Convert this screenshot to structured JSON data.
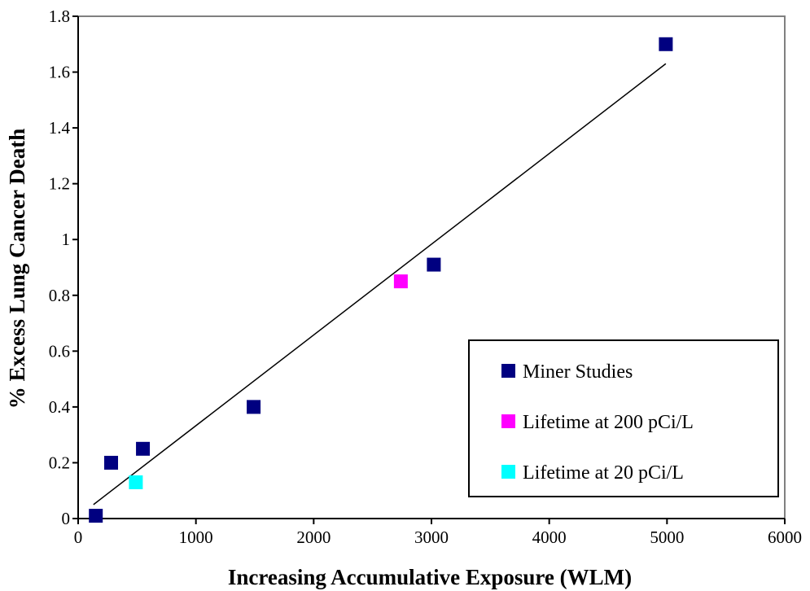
{
  "chart_data": {
    "type": "scatter",
    "xlabel": "Increasing Accumulative Exposure (WLM)",
    "ylabel": "% Excess Lung Cancer Death",
    "xlim": [
      0,
      6000
    ],
    "ylim": [
      0,
      1.8
    ],
    "x_ticks": [
      "0",
      "1000",
      "2000",
      "3000",
      "4000",
      "5000",
      "6000"
    ],
    "y_ticks": [
      "0",
      "0.2",
      "0.4",
      "0.6",
      "0.8",
      "1",
      "1.2",
      "1.4",
      "1.6",
      "1.8"
    ],
    "grid": false,
    "legend_position": "bottom-right",
    "series": [
      {
        "name": "Miner Studies",
        "color": "#000080",
        "points": [
          {
            "x": 150,
            "y": 0.01
          },
          {
            "x": 280,
            "y": 0.2
          },
          {
            "x": 550,
            "y": 0.25
          },
          {
            "x": 1490,
            "y": 0.4
          },
          {
            "x": 3020,
            "y": 0.91
          },
          {
            "x": 4990,
            "y": 1.7
          }
        ]
      },
      {
        "name": "Lifetime at 200 pCi/L",
        "color": "#ff00ff",
        "points": [
          {
            "x": 2740,
            "y": 0.85
          }
        ]
      },
      {
        "name": "Lifetime at 20 pCi/L",
        "color": "#00ffff",
        "points": [
          {
            "x": 490,
            "y": 0.13
          }
        ]
      }
    ],
    "trendline": {
      "x": [
        130,
        4990
      ],
      "y": [
        0.05,
        1.63
      ]
    }
  }
}
